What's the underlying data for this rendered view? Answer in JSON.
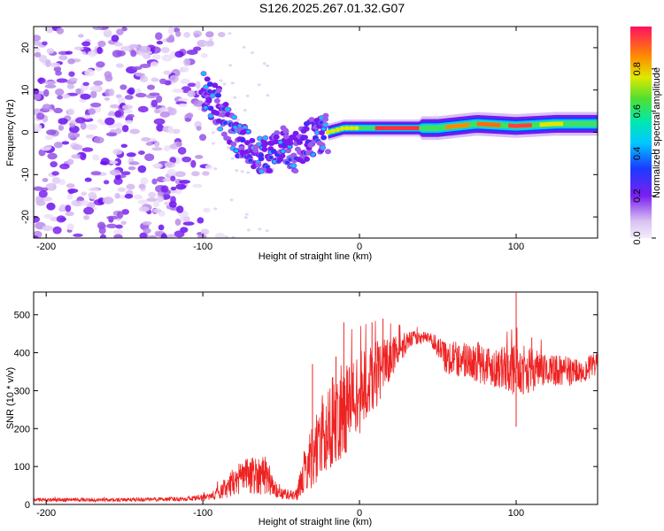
{
  "title": "S126.2025.267.01.32.G07",
  "chart_data": [
    {
      "type": "heatmap",
      "name": "spectrogram",
      "xlabel": "Height of straight line (km)",
      "ylabel": "Frequency (Hz)",
      "xlim": [
        -208,
        152
      ],
      "ylim": [
        -25,
        25
      ],
      "x_ticks": [
        -200,
        -100,
        0,
        100
      ],
      "y_ticks": [
        -20,
        -10,
        0,
        10,
        20
      ],
      "colorbar": {
        "label": "Normalized spectral amplitude",
        "range": [
          0,
          1
        ],
        "ticks": [
          0.0,
          0.2,
          0.4,
          0.6,
          0.8
        ]
      },
      "ridge": [
        {
          "x": -100,
          "y": 10
        },
        {
          "x": -90,
          "y": 6
        },
        {
          "x": -80,
          "y": 0
        },
        {
          "x": -70,
          "y": -4
        },
        {
          "x": -60,
          "y": -6
        },
        {
          "x": -50,
          "y": -3
        },
        {
          "x": -40,
          "y": -5
        },
        {
          "x": -30,
          "y": -1
        },
        {
          "x": -20,
          "y": 0
        },
        {
          "x": -10,
          "y": 1
        },
        {
          "x": 0,
          "y": 1
        },
        {
          "x": 25,
          "y": 1
        },
        {
          "x": 50,
          "y": 1
        },
        {
          "x": 75,
          "y": 2
        },
        {
          "x": 100,
          "y": 1.5
        },
        {
          "x": 125,
          "y": 2
        },
        {
          "x": 150,
          "y": 2
        }
      ]
    },
    {
      "type": "line",
      "name": "snr",
      "xlabel": "Height of straight line (km)",
      "ylabel": "SNR (10 * v/v)",
      "xlim": [
        -208,
        152
      ],
      "ylim": [
        0,
        560
      ],
      "x_ticks": [
        -200,
        -100,
        0,
        100
      ],
      "y_ticks": [
        0,
        100,
        200,
        300,
        400,
        500
      ],
      "color": "#ee2222",
      "envelope": [
        {
          "x": -208,
          "mean": 12,
          "amp": 5
        },
        {
          "x": -150,
          "mean": 12,
          "amp": 5
        },
        {
          "x": -110,
          "mean": 15,
          "amp": 6
        },
        {
          "x": -95,
          "mean": 20,
          "amp": 10
        },
        {
          "x": -85,
          "mean": 45,
          "amp": 30
        },
        {
          "x": -75,
          "mean": 75,
          "amp": 45
        },
        {
          "x": -60,
          "mean": 80,
          "amp": 55
        },
        {
          "x": -52,
          "mean": 30,
          "amp": 15
        },
        {
          "x": -40,
          "mean": 25,
          "amp": 15
        },
        {
          "x": -35,
          "mean": 90,
          "amp": 60
        },
        {
          "x": -25,
          "mean": 170,
          "amp": 110
        },
        {
          "x": -15,
          "mean": 230,
          "amp": 130
        },
        {
          "x": -5,
          "mean": 270,
          "amp": 120
        },
        {
          "x": 10,
          "mean": 340,
          "amp": 90
        },
        {
          "x": 25,
          "mean": 410,
          "amp": 40
        },
        {
          "x": 35,
          "mean": 440,
          "amp": 18
        },
        {
          "x": 45,
          "mean": 440,
          "amp": 15
        },
        {
          "x": 55,
          "mean": 390,
          "amp": 45
        },
        {
          "x": 75,
          "mean": 375,
          "amp": 55
        },
        {
          "x": 90,
          "mean": 360,
          "amp": 55
        },
        {
          "x": 100,
          "mean": 355,
          "amp": 70
        },
        {
          "x": 120,
          "mean": 355,
          "amp": 45
        },
        {
          "x": 140,
          "mean": 350,
          "amp": 35
        },
        {
          "x": 152,
          "mean": 370,
          "amp": 30
        }
      ],
      "spikes": [
        {
          "x": -30,
          "y": 370
        },
        {
          "x": -15,
          "y": 390
        },
        {
          "x": -10,
          "y": 480
        },
        {
          "x": 8,
          "y": 480
        },
        {
          "x": 15,
          "y": 490
        },
        {
          "x": 100,
          "y": 560
        },
        {
          "x": 100,
          "y": 205
        },
        {
          "x": 110,
          "y": 440
        }
      ]
    }
  ]
}
